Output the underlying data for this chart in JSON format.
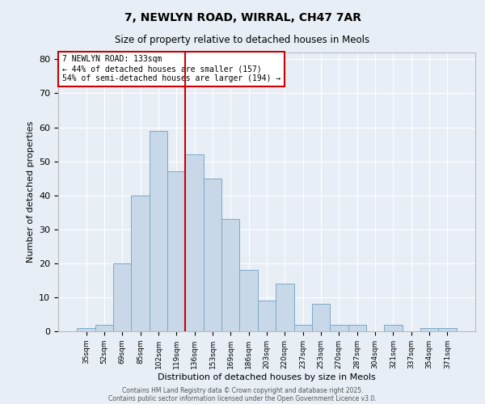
{
  "title1": "7, NEWLYN ROAD, WIRRAL, CH47 7AR",
  "title2": "Size of property relative to detached houses in Meols",
  "xlabel": "Distribution of detached houses by size in Meols",
  "ylabel": "Number of detached properties",
  "bar_color": "#c8d8e8",
  "bar_edge_color": "#7aaac8",
  "categories": [
    "35sqm",
    "52sqm",
    "69sqm",
    "85sqm",
    "102sqm",
    "119sqm",
    "136sqm",
    "153sqm",
    "169sqm",
    "186sqm",
    "203sqm",
    "220sqm",
    "237sqm",
    "253sqm",
    "270sqm",
    "287sqm",
    "304sqm",
    "321sqm",
    "337sqm",
    "354sqm",
    "371sqm"
  ],
  "values": [
    1,
    2,
    20,
    40,
    59,
    47,
    52,
    45,
    33,
    18,
    9,
    14,
    2,
    8,
    2,
    2,
    0,
    2,
    0,
    1,
    1
  ],
  "vline_x": 6,
  "vline_color": "#cc0000",
  "ylim": [
    0,
    82
  ],
  "yticks": [
    0,
    10,
    20,
    30,
    40,
    50,
    60,
    70,
    80
  ],
  "annotation_text": "7 NEWLYN ROAD: 133sqm\n← 44% of detached houses are smaller (157)\n54% of semi-detached houses are larger (194) →",
  "annotation_box_color": "#ffffff",
  "annotation_box_edge": "#cc0000",
  "background_color": "#e8eef5",
  "footer1": "Contains HM Land Registry data © Crown copyright and database right 2025.",
  "footer2": "Contains public sector information licensed under the Open Government Licence v3.0."
}
